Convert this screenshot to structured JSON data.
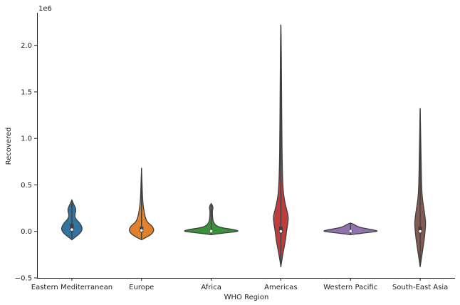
{
  "chart_data": {
    "type": "violin",
    "xlabel": "WHO Region",
    "ylabel": "Recovered",
    "y_offset_text": "1e6",
    "ylim": [
      -0.5,
      2.35
    ],
    "yticks": [
      -0.5,
      0.0,
      0.5,
      1.0,
      1.5,
      2.0
    ],
    "ytick_labels": [
      "−0.5",
      "0.0",
      "0.5",
      "1.0",
      "1.5",
      "2.0"
    ],
    "grid": false,
    "categories": [
      "Eastern Mediterranean",
      "Europe",
      "Africa",
      "Americas",
      "Western Pacific",
      "South-East Asia"
    ],
    "colors": [
      "#3274a1",
      "#e1812c",
      "#3a923a",
      "#c03d3e",
      "#9372b2",
      "#845b53"
    ],
    "violins": [
      {
        "min": -0.09,
        "max": 0.34,
        "q1": 0.0,
        "median": 0.02,
        "q3": 0.08,
        "max_half_width": 0.15,
        "profile": [
          [
            -0.09,
            0.0
          ],
          [
            -0.06,
            0.05
          ],
          [
            -0.02,
            0.12
          ],
          [
            0.02,
            0.15
          ],
          [
            0.06,
            0.14
          ],
          [
            0.1,
            0.1
          ],
          [
            0.14,
            0.05
          ],
          [
            0.18,
            0.04
          ],
          [
            0.22,
            0.06
          ],
          [
            0.26,
            0.05
          ],
          [
            0.3,
            0.02
          ],
          [
            0.34,
            0.0
          ]
        ]
      },
      {
        "min": -0.09,
        "max": 0.68,
        "q1": -0.01,
        "median": 0.01,
        "q3": 0.05,
        "max_half_width": 0.18,
        "profile": [
          [
            -0.09,
            0.0
          ],
          [
            -0.06,
            0.08
          ],
          [
            -0.02,
            0.16
          ],
          [
            0.02,
            0.18
          ],
          [
            0.06,
            0.15
          ],
          [
            0.1,
            0.08
          ],
          [
            0.16,
            0.05
          ],
          [
            0.22,
            0.035
          ],
          [
            0.3,
            0.02
          ],
          [
            0.4,
            0.012
          ],
          [
            0.55,
            0.006
          ],
          [
            0.68,
            0.0
          ]
        ]
      },
      {
        "min": -0.035,
        "max": 0.3,
        "q1": -0.005,
        "median": 0.002,
        "q3": 0.01,
        "max_half_width": 0.4,
        "profile": [
          [
            -0.035,
            0.0
          ],
          [
            -0.02,
            0.15
          ],
          [
            -0.005,
            0.34
          ],
          [
            0.005,
            0.4
          ],
          [
            0.02,
            0.32
          ],
          [
            0.04,
            0.15
          ],
          [
            0.06,
            0.07
          ],
          [
            0.1,
            0.03
          ],
          [
            0.15,
            0.02
          ],
          [
            0.22,
            0.015
          ],
          [
            0.26,
            0.03
          ],
          [
            0.3,
            0.0
          ]
        ]
      },
      {
        "min": -0.38,
        "max": 2.22,
        "q1": -0.02,
        "median": 0.0,
        "q3": 0.05,
        "max_half_width": 0.12,
        "profile": [
          [
            -0.38,
            0.0
          ],
          [
            -0.28,
            0.02
          ],
          [
            -0.18,
            0.045
          ],
          [
            -0.08,
            0.07
          ],
          [
            0.0,
            0.08
          ],
          [
            0.08,
            0.1
          ],
          [
            0.16,
            0.11
          ],
          [
            0.24,
            0.08
          ],
          [
            0.34,
            0.05
          ],
          [
            0.46,
            0.03
          ],
          [
            0.7,
            0.02
          ],
          [
            1.0,
            0.015
          ],
          [
            1.5,
            0.01
          ],
          [
            2.0,
            0.006
          ],
          [
            2.22,
            0.0
          ]
        ]
      },
      {
        "min": -0.035,
        "max": 0.09,
        "q1": -0.005,
        "median": 0.003,
        "q3": 0.015,
        "max_half_width": 0.4,
        "profile": [
          [
            -0.035,
            0.0
          ],
          [
            -0.02,
            0.15
          ],
          [
            -0.005,
            0.34
          ],
          [
            0.005,
            0.4
          ],
          [
            0.02,
            0.3
          ],
          [
            0.04,
            0.15
          ],
          [
            0.06,
            0.08
          ],
          [
            0.08,
            0.04
          ],
          [
            0.09,
            0.0
          ]
        ]
      },
      {
        "min": -0.38,
        "max": 1.32,
        "q1": -0.02,
        "median": 0.0,
        "q3": 0.05,
        "max_half_width": 0.08,
        "profile": [
          [
            -0.38,
            0.0
          ],
          [
            -0.28,
            0.02
          ],
          [
            -0.18,
            0.04
          ],
          [
            -0.08,
            0.06
          ],
          [
            0.0,
            0.07
          ],
          [
            0.08,
            0.08
          ],
          [
            0.16,
            0.07
          ],
          [
            0.26,
            0.05
          ],
          [
            0.36,
            0.03
          ],
          [
            0.5,
            0.02
          ],
          [
            0.8,
            0.012
          ],
          [
            1.1,
            0.006
          ],
          [
            1.32,
            0.0
          ]
        ]
      }
    ]
  }
}
